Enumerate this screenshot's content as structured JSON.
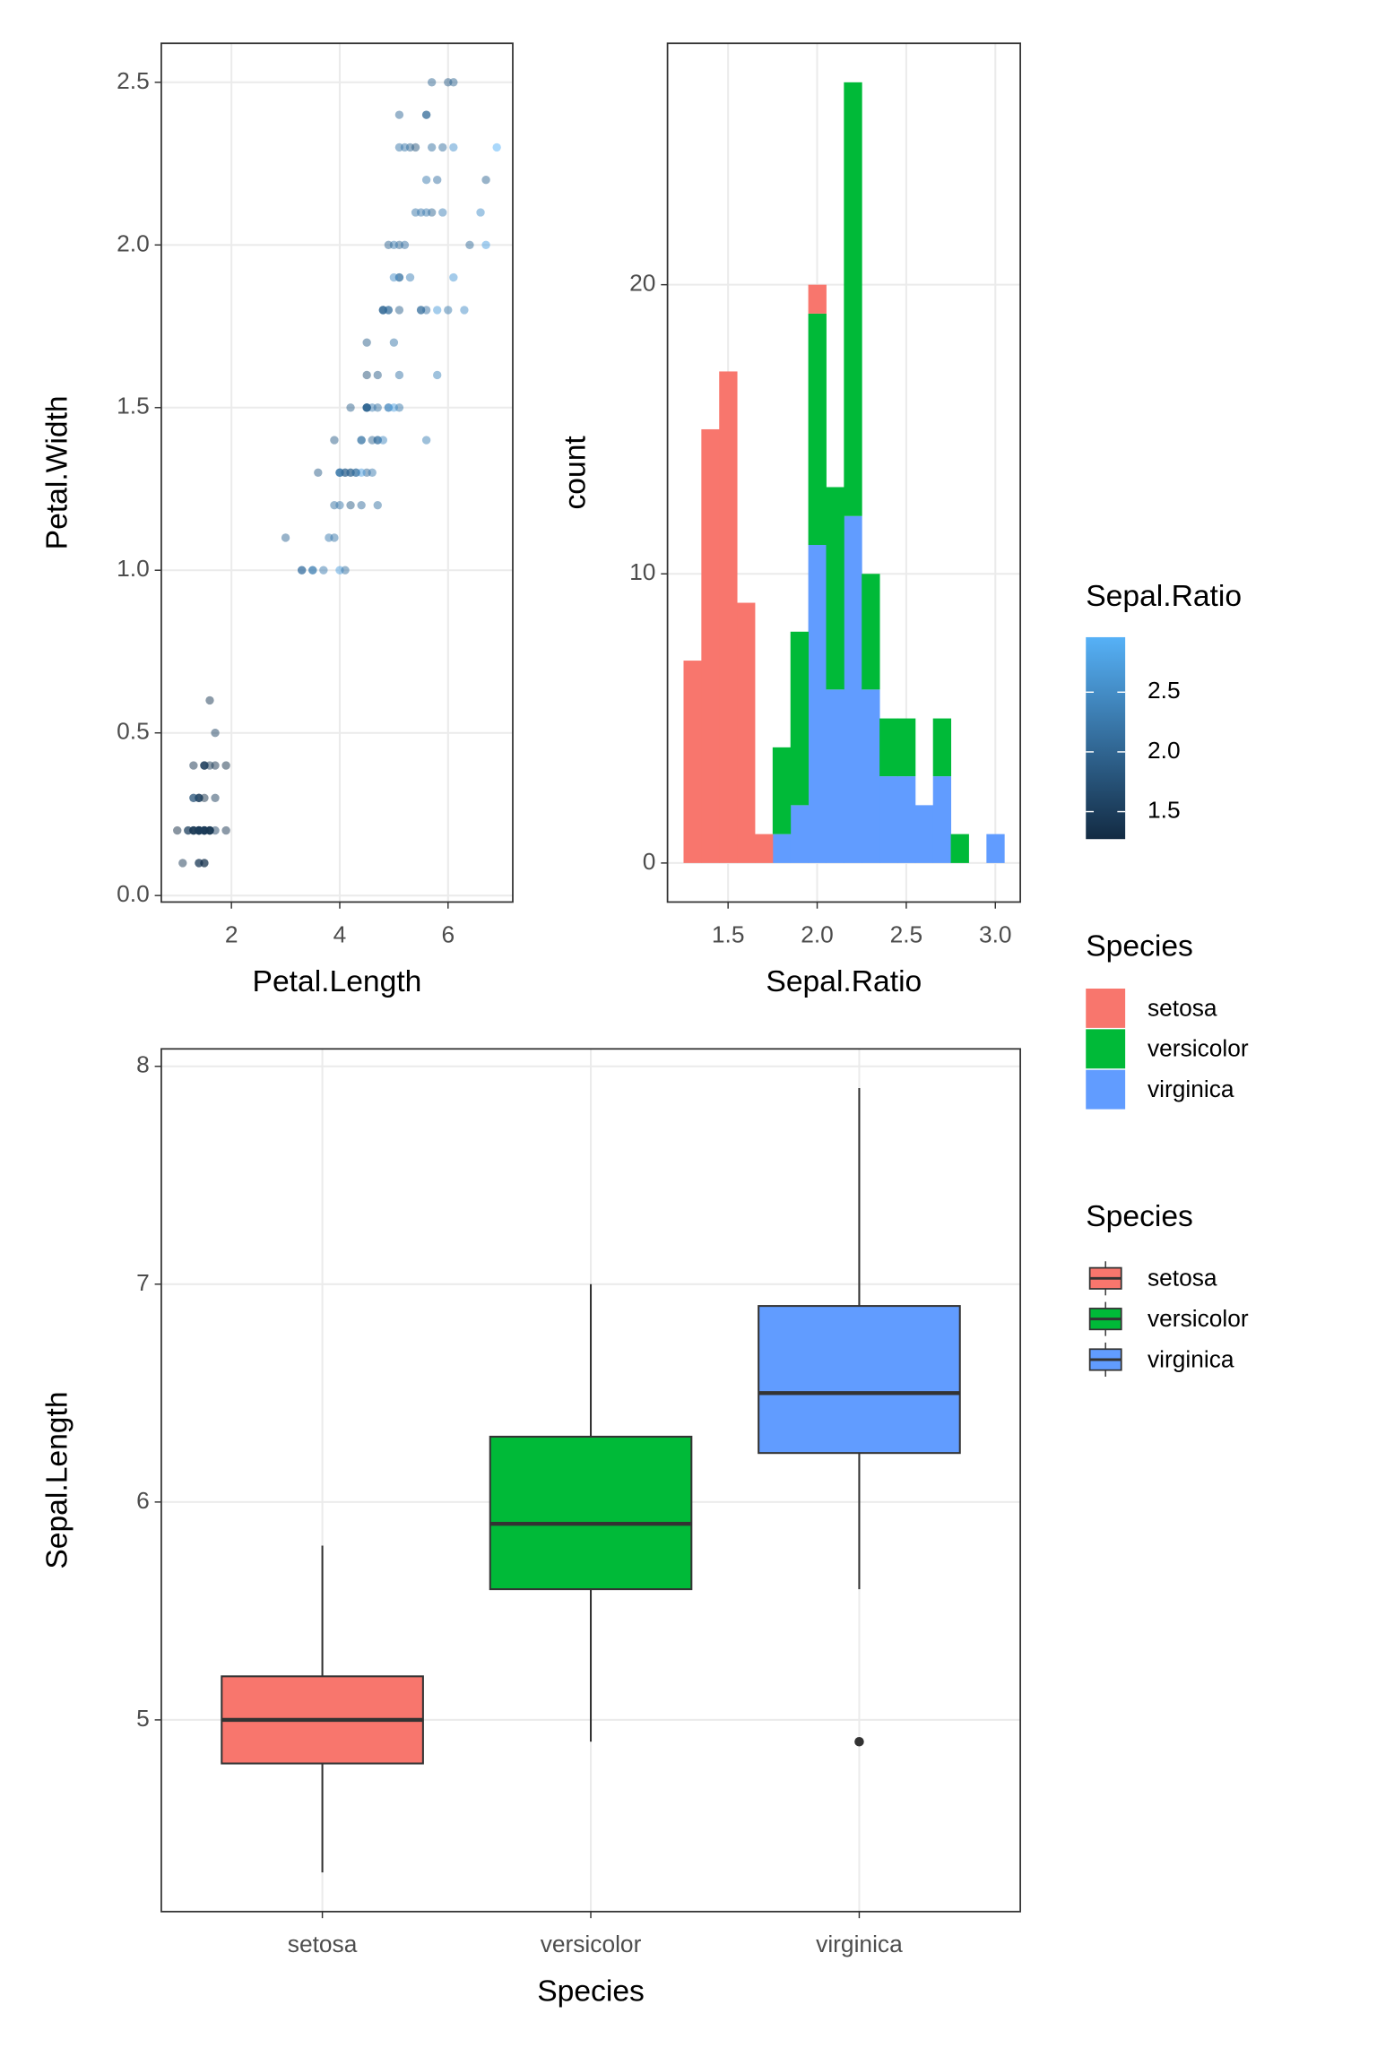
{
  "chart_data": [
    {
      "type": "scatter",
      "x_label": "Petal.Length",
      "y_label": "Petal.Width",
      "color_label": "Sepal.Ratio",
      "xlim": [
        0.705,
        7.195
      ],
      "ylim": [
        -0.02,
        2.62
      ],
      "xticks": [
        2,
        4,
        6
      ],
      "yticks": [
        {
          "value": 0,
          "label": "0.0"
        },
        0.5,
        {
          "value": 1,
          "label": "1.0"
        },
        1.5,
        {
          "value": 2,
          "label": "2.0"
        },
        2.5
      ],
      "grid": true,
      "opacity": 0.5,
      "color_scale": {
        "low": "#132B43",
        "high": "#56B1F7"
      },
      "color_limits": [
        1.27,
        2.96
      ],
      "colorbar_ticks": [
        1.5,
        {
          "value": 2,
          "label": "2.0"
        },
        2.5
      ],
      "x": [
        1.4,
        1.4,
        1.3,
        1.5,
        1.4,
        1.7,
        1.4,
        1.5,
        1.4,
        1.5,
        1.5,
        1.6,
        1.4,
        1.1,
        1.2,
        1.5,
        1.3,
        1.4,
        1.7,
        1.5,
        1.7,
        1.5,
        1.0,
        1.7,
        1.9,
        1.6,
        1.6,
        1.5,
        1.4,
        1.6,
        1.6,
        1.5,
        1.5,
        1.4,
        1.5,
        1.2,
        1.3,
        1.4,
        1.3,
        1.5,
        1.3,
        1.3,
        1.3,
        1.6,
        1.9,
        1.4,
        1.6,
        1.4,
        1.5,
        1.4,
        4.7,
        4.5,
        4.9,
        4.0,
        4.6,
        4.5,
        4.7,
        3.3,
        4.6,
        3.9,
        3.5,
        4.2,
        4.0,
        4.7,
        3.6,
        4.4,
        4.5,
        4.1,
        4.5,
        3.9,
        4.8,
        4.0,
        4.9,
        4.7,
        4.3,
        4.4,
        4.8,
        5.0,
        4.5,
        3.5,
        3.8,
        3.7,
        3.9,
        5.1,
        4.5,
        4.5,
        4.7,
        4.4,
        4.1,
        4.0,
        4.4,
        4.6,
        4.0,
        3.3,
        4.2,
        4.2,
        4.2,
        4.3,
        3.0,
        4.1,
        6.0,
        5.1,
        5.9,
        5.6,
        5.8,
        6.6,
        4.5,
        6.3,
        5.8,
        6.1,
        5.1,
        5.3,
        5.5,
        5.0,
        5.1,
        5.3,
        5.5,
        6.7,
        6.9,
        5.0,
        5.7,
        4.9,
        6.7,
        4.9,
        5.7,
        6.0,
        4.8,
        4.9,
        5.6,
        5.8,
        6.1,
        6.4,
        5.6,
        5.1,
        5.6,
        6.1,
        5.6,
        5.5,
        4.8,
        5.4,
        5.6,
        5.1,
        5.1,
        5.9,
        5.7,
        5.2,
        5.0,
        5.2,
        5.4,
        5.1
      ],
      "y": [
        0.2,
        0.2,
        0.2,
        0.2,
        0.2,
        0.4,
        0.3,
        0.2,
        0.2,
        0.1,
        0.2,
        0.2,
        0.1,
        0.1,
        0.2,
        0.4,
        0.4,
        0.3,
        0.3,
        0.3,
        0.2,
        0.4,
        0.2,
        0.5,
        0.2,
        0.2,
        0.4,
        0.2,
        0.2,
        0.2,
        0.2,
        0.4,
        0.1,
        0.2,
        0.2,
        0.2,
        0.2,
        0.1,
        0.2,
        0.2,
        0.3,
        0.3,
        0.2,
        0.6,
        0.4,
        0.3,
        0.2,
        0.2,
        0.2,
        0.2,
        1.4,
        1.5,
        1.5,
        1.3,
        1.5,
        1.3,
        1.6,
        1.0,
        1.3,
        1.4,
        1.0,
        1.5,
        1.0,
        1.4,
        1.3,
        1.4,
        1.5,
        1.0,
        1.5,
        1.1,
        1.8,
        1.3,
        1.5,
        1.2,
        1.3,
        1.4,
        1.4,
        1.7,
        1.5,
        1.0,
        1.1,
        1.0,
        1.2,
        1.6,
        1.5,
        1.6,
        1.5,
        1.3,
        1.3,
        1.3,
        1.2,
        1.4,
        1.2,
        1.0,
        1.3,
        1.2,
        1.3,
        1.3,
        1.1,
        1.3,
        2.5,
        1.9,
        2.1,
        1.8,
        2.2,
        2.1,
        1.7,
        1.8,
        1.8,
        2.5,
        2.0,
        1.9,
        2.1,
        2.0,
        2.4,
        2.3,
        1.8,
        2.2,
        2.3,
        1.5,
        2.3,
        2.0,
        2.0,
        1.8,
        2.1,
        1.8,
        1.8,
        1.8,
        2.1,
        1.6,
        1.9,
        2.0,
        2.2,
        1.5,
        1.4,
        2.3,
        2.4,
        1.8,
        1.8,
        2.1,
        2.4,
        2.3,
        1.9,
        2.3,
        2.5,
        2.3,
        1.9,
        2.0,
        2.3,
        1.8
      ],
      "color_values": [
        1.46,
        1.63,
        1.47,
        1.48,
        1.39,
        1.38,
        1.35,
        1.47,
        1.52,
        1.58,
        1.46,
        1.41,
        1.6,
        1.43,
        1.45,
        1.3,
        1.38,
        1.46,
        1.5,
        1.34,
        1.59,
        1.38,
        1.28,
        1.55,
        1.41,
        1.67,
        1.47,
        1.49,
        1.53,
        1.47,
        1.55,
        1.59,
        1.27,
        1.31,
        1.58,
        1.56,
        1.57,
        1.36,
        1.47,
        1.5,
        1.43,
        1.96,
        1.38,
        1.43,
        1.34,
        1.6,
        1.34,
        1.44,
        1.43,
        1.52,
        2.19,
        2.0,
        2.23,
        2.39,
        2.32,
        2.04,
        1.91,
        2.04,
        2.28,
        1.93,
        2.5,
        1.97,
        2.73,
        2.1,
        1.93,
        2.16,
        1.87,
        2.15,
        2.82,
        2.24,
        1.84,
        2.18,
        2.52,
        2.18,
        2.21,
        2.2,
        2.43,
        2.23,
        2.07,
        2.19,
        2.29,
        2.29,
        2.15,
        2.22,
        1.8,
        1.76,
        2.16,
        2.74,
        1.87,
        2.2,
        2.12,
        2.03,
        2.23,
        2.17,
        2.07,
        1.9,
        1.97,
        2.14,
        2.04,
        2.04,
        1.91,
        2.15,
        2.37,
        2.17,
        2.17,
        2.53,
        1.96,
        2.52,
        2.68,
        2.0,
        2.03,
        2.37,
        2.27,
        2.28,
        2.07,
        2.0,
        2.17,
        2.03,
        2.96,
        2.73,
        2.16,
        2.0,
        2.75,
        2.33,
        2.03,
        2.25,
        2.21,
        2.03,
        2.29,
        2.4,
        2.64,
        2.08,
        2.29,
        2.25,
        2.35,
        2.57,
        1.85,
        2.06,
        2.0,
        2.23,
        2.16,
        2.23,
        2.15,
        2.13,
        2.03,
        2.23,
        2.52,
        2.17,
        1.82,
        1.97
      ]
    },
    {
      "type": "histogram",
      "x_label": "Sepal.Ratio",
      "y_label": "count",
      "legend_title": "Species",
      "xlim": [
        1.16,
        3.14
      ],
      "ylim": [
        -1.35,
        28.35
      ],
      "xticks": [
        1.5,
        {
          "value": 2,
          "label": "2.0"
        },
        2.5,
        {
          "value": 3,
          "label": "3.0"
        }
      ],
      "yticks": [
        0,
        10,
        20
      ],
      "grid": true,
      "bins": [
        1.25,
        1.35,
        1.45,
        1.55,
        1.65,
        1.75,
        1.85,
        1.95,
        2.05,
        2.15,
        2.25,
        2.35,
        2.45,
        2.55,
        2.65,
        2.75,
        2.85,
        2.95,
        3.05
      ],
      "series": [
        {
          "name": "setosa",
          "color": "#F8766D",
          "values": [
            7,
            15,
            17,
            9,
            1,
            0,
            0,
            1,
            0,
            0,
            0,
            0,
            0,
            0,
            0,
            0,
            0,
            0
          ]
        },
        {
          "name": "versicolor",
          "color": "#00BA38",
          "values": [
            0,
            0,
            0,
            0,
            0,
            3,
            6,
            8,
            7,
            15,
            4,
            2,
            2,
            0,
            2,
            1,
            0,
            0
          ]
        },
        {
          "name": "virginica",
          "color": "#619CFF",
          "values": [
            0,
            0,
            0,
            0,
            0,
            1,
            2,
            11,
            6,
            12,
            6,
            3,
            3,
            2,
            3,
            0,
            0,
            1
          ]
        }
      ]
    },
    {
      "type": "box",
      "x_label": "Species",
      "y_label": "Sepal.Length",
      "legend_title": "Species",
      "categories": [
        "setosa",
        "versicolor",
        "virginica"
      ],
      "ylim": [
        4.12,
        8.08
      ],
      "yticks": [
        5,
        6,
        7,
        8
      ],
      "grid": true,
      "series": [
        {
          "name": "setosa",
          "color": "#F8766D",
          "min": 4.3,
          "q1": 4.8,
          "median": 5.0,
          "q3": 5.2,
          "max": 5.8
        },
        {
          "name": "versicolor",
          "color": "#00BA38",
          "min": 4.9,
          "q1": 5.6,
          "median": 5.9,
          "q3": 6.3,
          "max": 7.0
        },
        {
          "name": "virginica",
          "color": "#619CFF",
          "min": 5.6,
          "q1": 6.225,
          "median": 6.5,
          "q3": 6.9,
          "max": 7.9,
          "outliers": [
            4.9
          ]
        }
      ]
    }
  ]
}
